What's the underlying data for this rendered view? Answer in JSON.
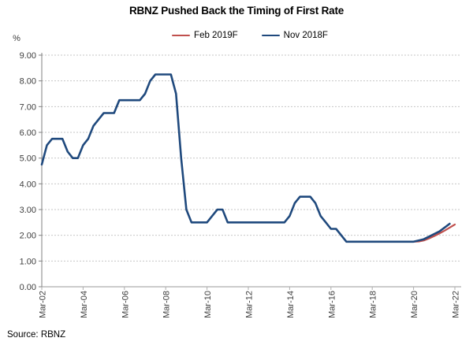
{
  "title": "RBNZ Pushed Back the Timing of First Rate",
  "source_note": "Source: RBNZ",
  "y_axis_unit": "%",
  "legend": [
    {
      "label": "Feb 2019F",
      "color": "#C0504D"
    },
    {
      "label": "Nov 2018F",
      "color": "#1F497D"
    }
  ],
  "chart_data": {
    "type": "line",
    "title": "RBNZ Pushed Back the Timing of First Rate",
    "ylabel": "%",
    "xlabel": "",
    "ylim": [
      0,
      9
    ],
    "ytick_step": 1,
    "ytick_labels": [
      "0.00",
      "1.00",
      "2.00",
      "3.00",
      "4.00",
      "5.00",
      "6.00",
      "7.00",
      "8.00",
      "9.00"
    ],
    "x_frequency": "quarterly",
    "x_start": "Mar-02",
    "x_end": "Mar-22",
    "x_tick_labels": [
      "Mar-02",
      "Mar-04",
      "Mar-06",
      "Mar-08",
      "Mar-10",
      "Mar-12",
      "Mar-14",
      "Mar-16",
      "Mar-18",
      "Mar-20",
      "Mar-22"
    ],
    "x_ticks_every_quarters": 8,
    "total_quarters": 81,
    "grid": "horizontal-dashed",
    "legend_position": "top",
    "series": [
      {
        "name": "Nov 2018F",
        "color": "#1F497D",
        "width": 2.6,
        "start_quarter_index": 0,
        "values": [
          4.75,
          5.5,
          5.75,
          5.75,
          5.75,
          5.25,
          5.0,
          5.0,
          5.5,
          5.75,
          6.25,
          6.5,
          6.75,
          6.75,
          6.75,
          7.25,
          7.25,
          7.25,
          7.25,
          7.25,
          7.5,
          8.0,
          8.25,
          8.25,
          8.25,
          8.25,
          7.5,
          5.0,
          3.0,
          2.5,
          2.5,
          2.5,
          2.5,
          2.75,
          3.0,
          3.0,
          2.5,
          2.5,
          2.5,
          2.5,
          2.5,
          2.5,
          2.5,
          2.5,
          2.5,
          2.5,
          2.5,
          2.5,
          2.75,
          3.25,
          3.5,
          3.5,
          3.5,
          3.25,
          2.75,
          2.5,
          2.25,
          2.25,
          2.0,
          1.75,
          1.75,
          1.75,
          1.75,
          1.75,
          1.75,
          1.75,
          1.75,
          1.75,
          1.75,
          1.75,
          1.75,
          1.75,
          1.75,
          1.8,
          1.85,
          1.95,
          2.05,
          2.15,
          2.3,
          2.45
        ]
      },
      {
        "name": "Feb 2019F",
        "color": "#C0504D",
        "width": 2.2,
        "start_quarter_index": 68,
        "values": [
          1.75,
          1.75,
          1.75,
          1.75,
          1.75,
          1.76,
          1.8,
          1.88,
          1.97,
          2.07,
          2.18,
          2.3,
          2.42
        ]
      }
    ]
  }
}
